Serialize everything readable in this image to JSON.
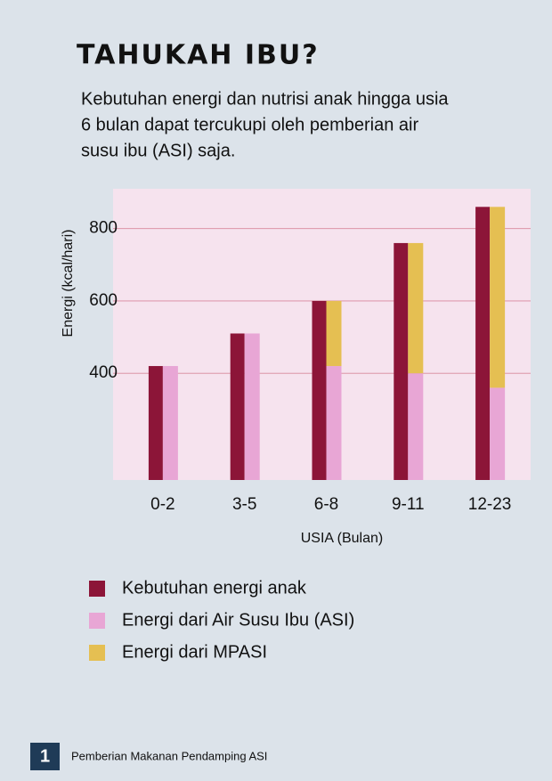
{
  "chart_data": {
    "type": "bar",
    "title": "TAHUKAH IBU?",
    "subtitle": [
      "Kebutuhan energi dan nutrisi anak hingga usia",
      "6 bulan dapat tercukupi oleh pemberian air",
      "susu ibu (ASI) saja."
    ],
    "x_label": "USIA (Bulan)",
    "y_label": "Energi (kcal/hari)",
    "categories": [
      "0-2",
      "3-5",
      "6-8",
      "9-11",
      "12-23"
    ],
    "series": [
      {
        "name": "Kebutuhan energi anak",
        "color": "#8c1538",
        "values": [
          420,
          510,
          600,
          760,
          860
        ]
      },
      {
        "name": "Energi dari Air Susu Ibu (ASI)",
        "color": "#e8a6d5",
        "values": [
          420,
          510,
          420,
          400,
          360
        ]
      },
      {
        "name": "Energi dari MPASI",
        "color": "#e5bf52",
        "values": [
          null,
          null,
          180,
          360,
          500
        ]
      }
    ],
    "ylim": [
      105,
      910
    ],
    "yticks": [
      400,
      600,
      800
    ],
    "grid": true
  },
  "footer": {
    "page": "1",
    "text": "Pemberian Makanan Pendamping ASI"
  }
}
